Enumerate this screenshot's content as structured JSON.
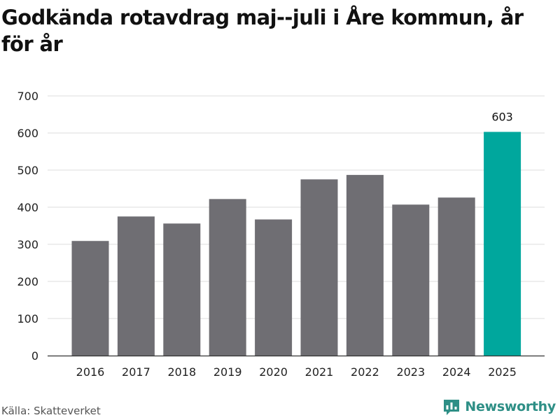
{
  "title": "Godkända rotavdrag maj--juli i Åre kommun, år för år",
  "source": "Källa: Skatteverket",
  "brand": {
    "name": "Newsworthy",
    "icon": "newsworthy-logo-icon"
  },
  "colors": {
    "bar_default": "#6f6e73",
    "bar_highlight": "#00a79d",
    "gridline": "#dddddd",
    "axis": "#333333",
    "brand": "#2e8f86"
  },
  "chart_data": {
    "type": "bar",
    "categories": [
      "2016",
      "2017",
      "2018",
      "2019",
      "2020",
      "2021",
      "2022",
      "2023",
      "2024",
      "2025"
    ],
    "values": [
      309,
      375,
      356,
      422,
      367,
      475,
      487,
      407,
      426,
      603
    ],
    "highlight_index": 9,
    "data_labels": [
      {
        "index": 9,
        "text": "603"
      }
    ],
    "yticks": [
      0,
      100,
      200,
      300,
      400,
      500,
      600,
      700
    ],
    "ylim": [
      0,
      700
    ],
    "xlabel": "",
    "ylabel": "",
    "grid": true,
    "legend": "none"
  }
}
